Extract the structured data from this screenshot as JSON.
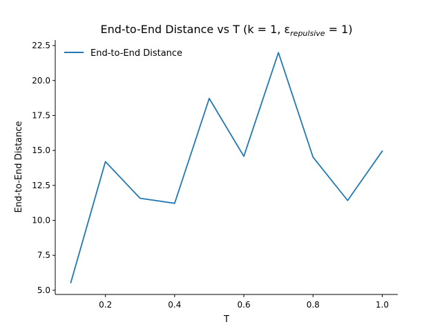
{
  "chart_data": {
    "type": "line",
    "title": "End-to-End Distance vs T (k = 1, ε",
    "title_subscript": "repulsive",
    "title_suffix": " = 1)",
    "xlabel": "T",
    "ylabel": "End-to-End Distance",
    "xlim": [
      0.055,
      1.045
    ],
    "ylim": [
      4.7,
      22.9
    ],
    "xticks": [
      0.2,
      0.4,
      0.6,
      0.8,
      1.0
    ],
    "xtick_labels": [
      "0.2",
      "0.4",
      "0.6",
      "0.8",
      "1.0"
    ],
    "yticks": [
      5.0,
      7.5,
      10.0,
      12.5,
      15.0,
      17.5,
      20.0,
      22.5
    ],
    "ytick_labels": [
      "5.0",
      "7.5",
      "10.0",
      "12.5",
      "15.0",
      "17.5",
      "20.0",
      "22.5"
    ],
    "grid": false,
    "legend_position": "top-left",
    "series": [
      {
        "name": "End-to-End Distance",
        "color": "#1f77b4",
        "x": [
          0.1,
          0.2,
          0.3,
          0.4,
          0.5,
          0.6,
          0.7,
          0.8,
          0.9,
          1.0
        ],
        "y": [
          5.55,
          14.2,
          11.58,
          11.22,
          18.72,
          14.58,
          22.0,
          14.52,
          11.42,
          14.95
        ]
      }
    ]
  }
}
